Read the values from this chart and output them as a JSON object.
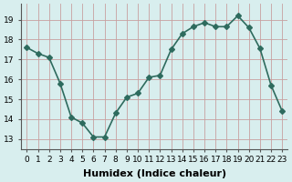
{
  "x": [
    0,
    1,
    2,
    3,
    4,
    5,
    6,
    7,
    8,
    9,
    10,
    11,
    12,
    13,
    14,
    15,
    16,
    17,
    18,
    19,
    20,
    21,
    22,
    23
  ],
  "y": [
    17.6,
    17.3,
    17.1,
    15.8,
    14.1,
    13.8,
    13.1,
    13.1,
    14.3,
    15.1,
    15.3,
    16.1,
    16.2,
    17.5,
    18.3,
    18.65,
    18.85,
    18.65,
    18.65,
    19.2,
    18.6,
    17.55,
    15.7,
    14.4
  ],
  "line_color": "#2e6b5e",
  "marker": "D",
  "markersize": 3,
  "linewidth": 1.2,
  "xlabel": "Humidex (Indice chaleur)",
  "xlabel_fontsize": 8,
  "xlabel_bold": true,
  "ylim": [
    12.5,
    19.8
  ],
  "xlim": [
    -0.5,
    23.5
  ],
  "yticks": [
    13,
    14,
    15,
    16,
    17,
    18,
    19
  ],
  "xticks": [
    0,
    1,
    2,
    3,
    4,
    5,
    6,
    7,
    8,
    9,
    10,
    11,
    12,
    13,
    14,
    15,
    16,
    17,
    18,
    19,
    20,
    21,
    22,
    23
  ],
  "grid_color": "#c8a0a0",
  "bg_color": "#d8eeee",
  "tick_fontsize": 6.5
}
